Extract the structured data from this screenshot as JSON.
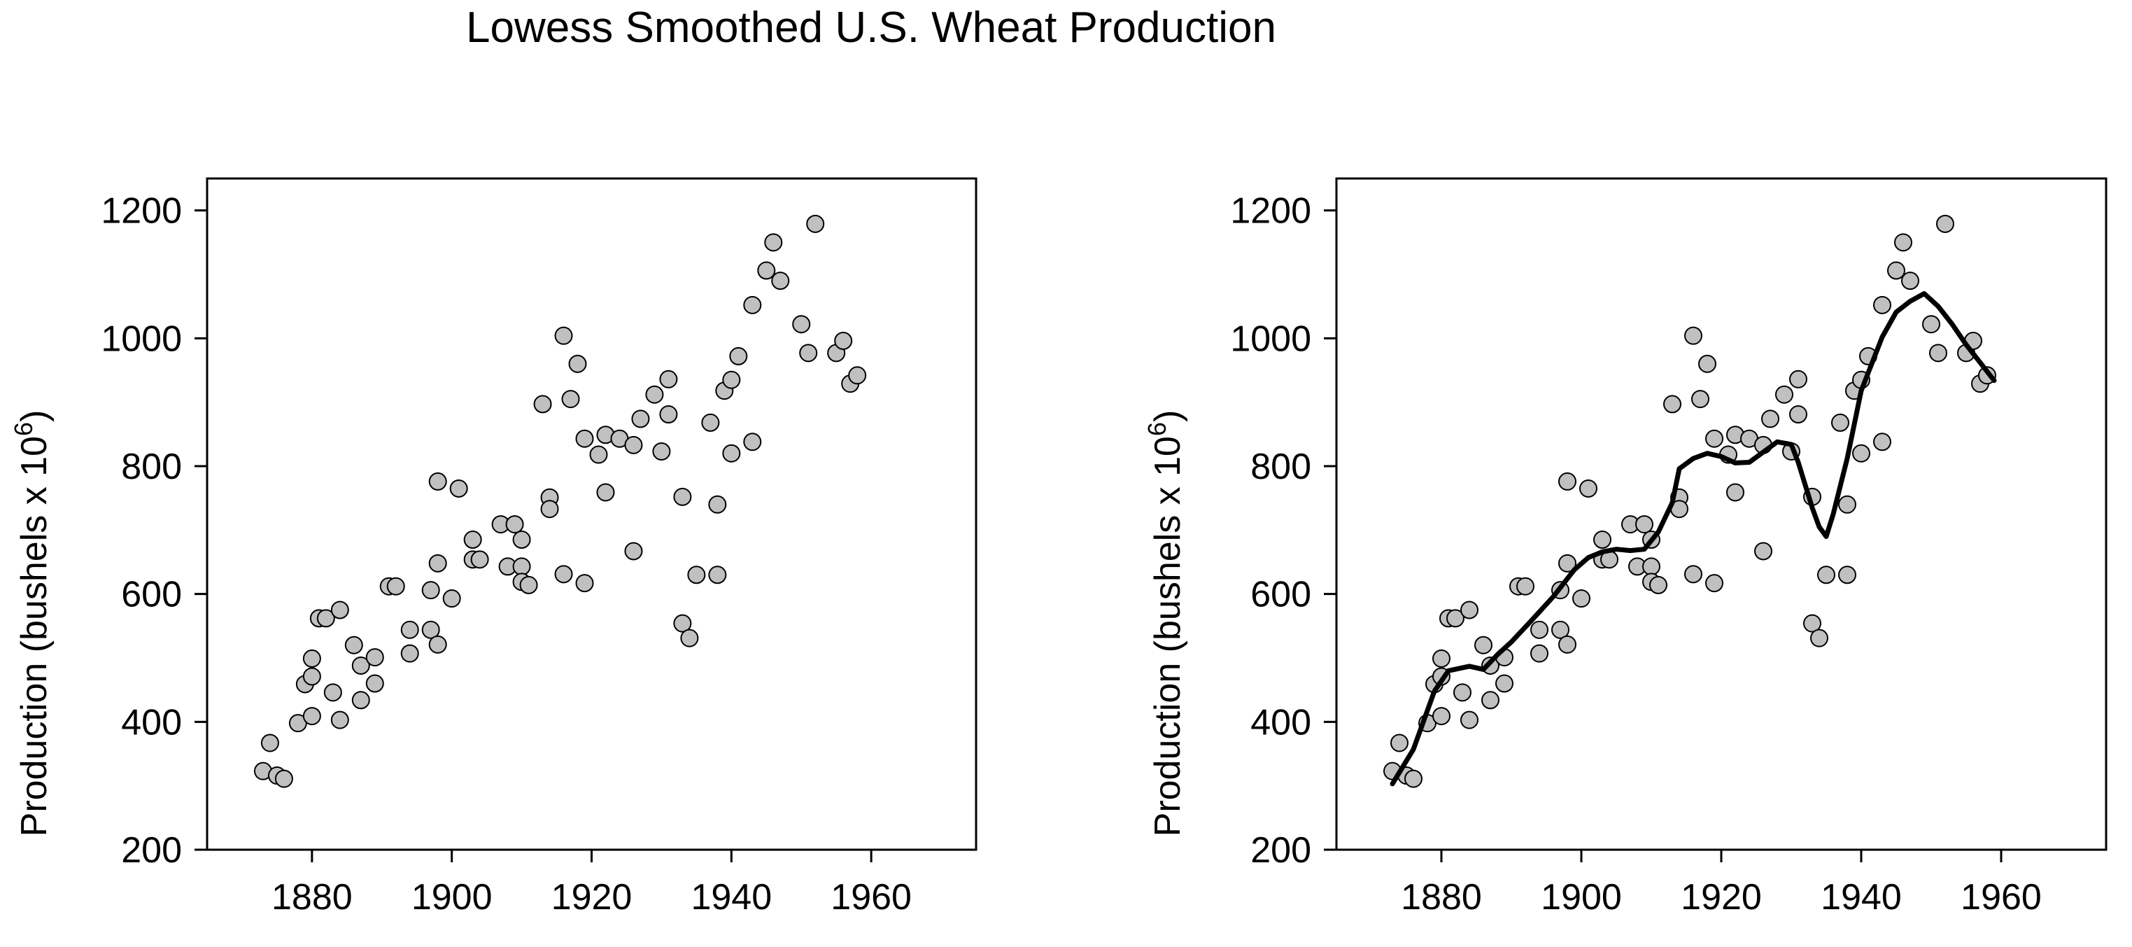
{
  "title": "Lowess Smoothed U.S. Wheat Production",
  "chart_data": [
    {
      "type": "scatter",
      "panel": "left",
      "xlabel": "",
      "ylabel": "Production (bushels x 10",
      "ylabel_exponent": "6",
      "ylabel_suffix": ")",
      "xlim": [
        1865,
        1975
      ],
      "ylim": [
        200,
        1250
      ],
      "xticks": [
        1880,
        1900,
        1920,
        1940,
        1960
      ],
      "yticks": [
        200,
        400,
        600,
        800,
        1000,
        1200
      ],
      "grid": false,
      "series": [
        {
          "kind": "points",
          "marker_fill": "#c0c0c0",
          "points": [
            [
              1873,
              323
            ],
            [
              1874,
              367
            ],
            [
              1875,
              316
            ],
            [
              1876,
              311
            ],
            [
              1878,
              398
            ],
            [
              1879,
              459
            ],
            [
              1880,
              499
            ],
            [
              1880,
              471
            ],
            [
              1880,
              409
            ],
            [
              1881,
              562
            ],
            [
              1882,
              562
            ],
            [
              1883,
              446
            ],
            [
              1884,
              403
            ],
            [
              1884,
              575
            ],
            [
              1886,
              520
            ],
            [
              1887,
              488
            ],
            [
              1887,
              434
            ],
            [
              1889,
              501
            ],
            [
              1889,
              460
            ],
            [
              1891,
              612
            ],
            [
              1892,
              612
            ],
            [
              1894,
              507
            ],
            [
              1894,
              544
            ],
            [
              1897,
              606
            ],
            [
              1897,
              544
            ],
            [
              1898,
              648
            ],
            [
              1898,
              521
            ],
            [
              1898,
              776
            ],
            [
              1901,
              765
            ],
            [
              1900,
              593
            ],
            [
              1903,
              654
            ],
            [
              1903,
              685
            ],
            [
              1904,
              654
            ],
            [
              1907,
              709
            ],
            [
              1908,
              643
            ],
            [
              1909,
              709
            ],
            [
              1910,
              685
            ],
            [
              1910,
              643
            ],
            [
              1910,
              619
            ],
            [
              1911,
              614
            ],
            [
              1913,
              897
            ],
            [
              1914,
              751
            ],
            [
              1914,
              733
            ],
            [
              1916,
              1004
            ],
            [
              1917,
              905
            ],
            [
              1916,
              631
            ],
            [
              1918,
              960
            ],
            [
              1919,
              843
            ],
            [
              1919,
              617
            ],
            [
              1921,
              818
            ],
            [
              1922,
              759
            ],
            [
              1922,
              849
            ],
            [
              1924,
              843
            ],
            [
              1926,
              667
            ],
            [
              1926,
              833
            ],
            [
              1927,
              874
            ],
            [
              1929,
              912
            ],
            [
              1930,
              823
            ],
            [
              1931,
              881
            ],
            [
              1931,
              936
            ],
            [
              1933,
              752
            ],
            [
              1933,
              554
            ],
            [
              1934,
              531
            ],
            [
              1935,
              630
            ],
            [
              1937,
              868
            ],
            [
              1938,
              740
            ],
            [
              1938,
              630
            ],
            [
              1939,
              918
            ],
            [
              1940,
              935
            ],
            [
              1940,
              820
            ],
            [
              1941,
              972
            ],
            [
              1943,
              838
            ],
            [
              1943,
              1052
            ],
            [
              1945,
              1106
            ],
            [
              1946,
              1150
            ],
            [
              1947,
              1090
            ],
            [
              1950,
              1022
            ],
            [
              1951,
              977
            ],
            [
              1952,
              1179
            ],
            [
              1955,
              977
            ],
            [
              1956,
              996
            ],
            [
              1957,
              929
            ],
            [
              1958,
              942
            ]
          ]
        }
      ]
    },
    {
      "type": "scatter",
      "panel": "right",
      "xlabel": "",
      "ylabel": "Production (bushels x 10",
      "ylabel_exponent": "6",
      "ylabel_suffix": ")",
      "xlim": [
        1865,
        1975
      ],
      "ylim": [
        200,
        1250
      ],
      "xticks": [
        1880,
        1900,
        1920,
        1940,
        1960
      ],
      "yticks": [
        200,
        400,
        600,
        800,
        1000,
        1200
      ],
      "grid": false,
      "series": [
        {
          "kind": "points",
          "marker_fill": "#c0c0c0",
          "points": [
            [
              1873,
              323
            ],
            [
              1874,
              367
            ],
            [
              1875,
              316
            ],
            [
              1876,
              311
            ],
            [
              1878,
              398
            ],
            [
              1879,
              459
            ],
            [
              1880,
              499
            ],
            [
              1880,
              471
            ],
            [
              1880,
              409
            ],
            [
              1881,
              562
            ],
            [
              1882,
              562
            ],
            [
              1883,
              446
            ],
            [
              1884,
              403
            ],
            [
              1884,
              575
            ],
            [
              1886,
              520
            ],
            [
              1887,
              488
            ],
            [
              1887,
              434
            ],
            [
              1889,
              501
            ],
            [
              1889,
              460
            ],
            [
              1891,
              612
            ],
            [
              1892,
              612
            ],
            [
              1894,
              507
            ],
            [
              1894,
              544
            ],
            [
              1897,
              606
            ],
            [
              1897,
              544
            ],
            [
              1898,
              648
            ],
            [
              1898,
              521
            ],
            [
              1898,
              776
            ],
            [
              1901,
              765
            ],
            [
              1900,
              593
            ],
            [
              1903,
              654
            ],
            [
              1903,
              685
            ],
            [
              1904,
              654
            ],
            [
              1907,
              709
            ],
            [
              1908,
              643
            ],
            [
              1909,
              709
            ],
            [
              1910,
              685
            ],
            [
              1910,
              643
            ],
            [
              1910,
              619
            ],
            [
              1911,
              614
            ],
            [
              1913,
              897
            ],
            [
              1914,
              751
            ],
            [
              1914,
              733
            ],
            [
              1916,
              1004
            ],
            [
              1917,
              905
            ],
            [
              1916,
              631
            ],
            [
              1918,
              960
            ],
            [
              1919,
              843
            ],
            [
              1919,
              617
            ],
            [
              1921,
              818
            ],
            [
              1922,
              759
            ],
            [
              1922,
              849
            ],
            [
              1924,
              843
            ],
            [
              1926,
              667
            ],
            [
              1926,
              833
            ],
            [
              1927,
              874
            ],
            [
              1929,
              912
            ],
            [
              1930,
              823
            ],
            [
              1931,
              881
            ],
            [
              1931,
              936
            ],
            [
              1933,
              752
            ],
            [
              1933,
              554
            ],
            [
              1934,
              531
            ],
            [
              1935,
              630
            ],
            [
              1937,
              868
            ],
            [
              1938,
              740
            ],
            [
              1938,
              630
            ],
            [
              1939,
              918
            ],
            [
              1940,
              935
            ],
            [
              1940,
              820
            ],
            [
              1941,
              972
            ],
            [
              1943,
              838
            ],
            [
              1943,
              1052
            ],
            [
              1945,
              1106
            ],
            [
              1946,
              1150
            ],
            [
              1947,
              1090
            ],
            [
              1950,
              1022
            ],
            [
              1951,
              977
            ],
            [
              1952,
              1179
            ],
            [
              1955,
              977
            ],
            [
              1956,
              996
            ],
            [
              1957,
              929
            ],
            [
              1958,
              942
            ]
          ]
        },
        {
          "kind": "line",
          "line_color": "#000000",
          "points": [
            [
              1873,
              303
            ],
            [
              1876,
              357
            ],
            [
              1879,
              448
            ],
            [
              1881,
              480
            ],
            [
              1884,
              487
            ],
            [
              1886,
              482
            ],
            [
              1888,
              505
            ],
            [
              1890,
              525
            ],
            [
              1893,
              560
            ],
            [
              1896,
              596
            ],
            [
              1899,
              638
            ],
            [
              1901,
              657
            ],
            [
              1903,
              666
            ],
            [
              1905,
              670
            ],
            [
              1907,
              668
            ],
            [
              1909,
              670
            ],
            [
              1911,
              697
            ],
            [
              1913,
              743
            ],
            [
              1914,
              796
            ],
            [
              1916,
              812
            ],
            [
              1918,
              820
            ],
            [
              1920,
              815
            ],
            [
              1922,
              805
            ],
            [
              1924,
              806
            ],
            [
              1926,
              822
            ],
            [
              1928,
              838
            ],
            [
              1930,
              834
            ],
            [
              1931,
              806
            ],
            [
              1933,
              735
            ],
            [
              1934,
              705
            ],
            [
              1935,
              690
            ],
            [
              1936,
              725
            ],
            [
              1938,
              812
            ],
            [
              1940,
              918
            ],
            [
              1943,
              1002
            ],
            [
              1945,
              1041
            ],
            [
              1947,
              1058
            ],
            [
              1949,
              1070
            ],
            [
              1951,
              1050
            ],
            [
              1953,
              1022
            ],
            [
              1955,
              990
            ],
            [
              1957,
              962
            ],
            [
              1959,
              934
            ]
          ]
        }
      ]
    }
  ]
}
